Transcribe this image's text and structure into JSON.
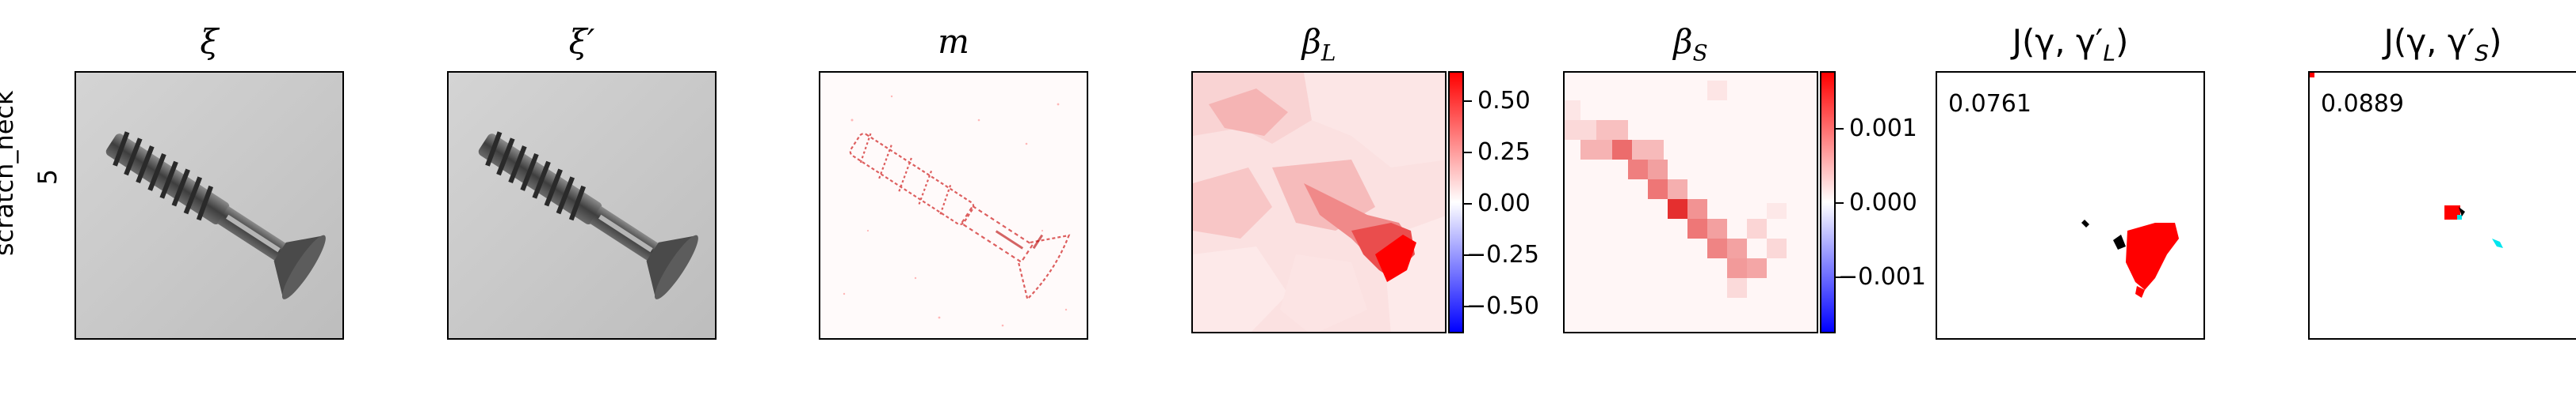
{
  "row_label": {
    "name": "scratch_neck",
    "index": "5"
  },
  "panels": [
    {
      "id": "xi",
      "title": "ξ"
    },
    {
      "id": "xi_prime",
      "title": "ξ′"
    },
    {
      "id": "m",
      "title": "m"
    },
    {
      "id": "beta_L",
      "title": "β",
      "sub": "L"
    },
    {
      "id": "beta_S",
      "title": "β",
      "sub": "S"
    },
    {
      "id": "J_L",
      "title": "J(γ, γ′",
      "sub": "L",
      "close": ")",
      "score": "0.0761"
    },
    {
      "id": "J_S",
      "title": "J(γ, γ′",
      "sub": "S",
      "close": ")",
      "score": "0.0889"
    }
  ],
  "colorbar_L": {
    "ticks": [
      "0.50",
      "0.25",
      "0.00",
      "−0.25",
      "−0.50"
    ],
    "range": [
      -0.6,
      0.6
    ]
  },
  "colorbar_S": {
    "ticks": [
      "0.001",
      "0.000",
      "−0.001"
    ],
    "range": [
      -0.0018,
      0.0018
    ]
  },
  "colors": {
    "positive": "#ff0000",
    "negative": "#0000ff",
    "overlay_extra": "#00e5ee",
    "contour": "#000000"
  }
}
